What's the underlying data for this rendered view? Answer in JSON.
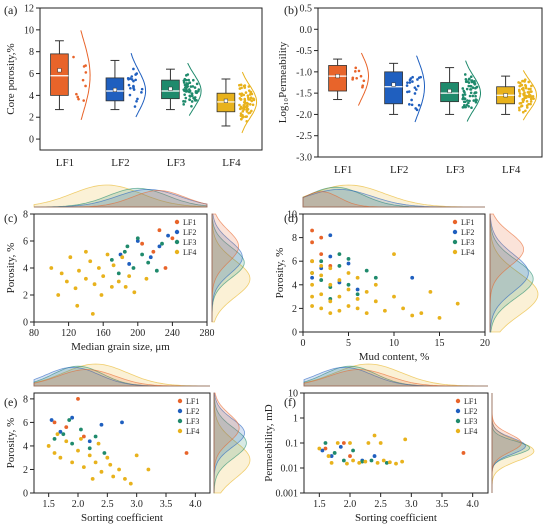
{
  "colors": {
    "LF1": "#e8642a",
    "LF2": "#1f5fbf",
    "LF3": "#1f8a6c",
    "LF4": "#e8b21c",
    "axis": "#222222"
  },
  "legend_labels": [
    "LF1",
    "LF2",
    "LF3",
    "LF4"
  ],
  "chart_data": [
    {
      "type": "box",
      "panel": "(a)",
      "ylabel": "Core porosity,%",
      "ylim": [
        -1,
        12
      ],
      "yticks": [
        "0",
        "2",
        "4",
        "6",
        "8",
        "10",
        "12"
      ],
      "categories": [
        "LF1",
        "LF2",
        "LF3",
        "LF4"
      ],
      "boxes": [
        {
          "name": "LF1",
          "whisker_low": 2.7,
          "q1": 4.0,
          "median": 5.8,
          "mean": 6.3,
          "q3": 7.8,
          "whisker_high": 9.0
        },
        {
          "name": "LF2",
          "whisker_low": 2.7,
          "q1": 3.5,
          "median": 4.4,
          "mean": 4.5,
          "q3": 5.6,
          "whisker_high": 7.2
        },
        {
          "name": "LF3",
          "whisker_low": 2.7,
          "q1": 3.7,
          "median": 4.4,
          "mean": 4.6,
          "q3": 5.4,
          "whisker_high": 6.4
        },
        {
          "name": "LF4",
          "whisker_low": 1.2,
          "q1": 2.5,
          "median": 3.4,
          "mean": 3.5,
          "q3": 4.2,
          "whisker_high": 5.5
        }
      ]
    },
    {
      "type": "box",
      "panel": "(b)",
      "ylabel": "Log₁₀Permeability",
      "ylim": [
        -3.0,
        0.5
      ],
      "yticks": [
        "-3.0",
        "-2.5",
        "-2.0",
        "-1.5",
        "-1.0",
        "-0.5",
        "0.0",
        "0.5"
      ],
      "categories": [
        "LF1",
        "LF2",
        "LF3",
        "LF4"
      ],
      "boxes": [
        {
          "name": "LF1",
          "whisker_low": -1.65,
          "q1": -1.45,
          "median": -1.1,
          "mean": -1.1,
          "q3": -0.85,
          "whisker_high": -0.7
        },
        {
          "name": "LF2",
          "whisker_low": -2.0,
          "q1": -1.75,
          "median": -1.35,
          "mean": -1.3,
          "q3": -1.0,
          "whisker_high": -0.8
        },
        {
          "name": "LF3",
          "whisker_low": -2.0,
          "q1": -1.7,
          "median": -1.5,
          "mean": -1.45,
          "q3": -1.25,
          "whisker_high": -0.9
        },
        {
          "name": "LF4",
          "whisker_low": -2.0,
          "q1": -1.75,
          "median": -1.55,
          "mean": -1.55,
          "q3": -1.35,
          "whisker_high": -1.1
        }
      ]
    },
    {
      "type": "scatter",
      "panel": "(c)",
      "xlabel": "Median grain size, μm",
      "ylabel": "Porosity, %",
      "xlim": [
        80,
        280
      ],
      "ylim": [
        0,
        8
      ],
      "xticks": [
        "80",
        "120",
        "160",
        "200",
        "240",
        "280"
      ],
      "yticks": [
        "0",
        "2",
        "4",
        "6",
        "8"
      ],
      "series": [
        {
          "name": "LF1",
          "points": [
            [
              205,
              5.8
            ],
            [
              225,
              6.8
            ],
            [
              240,
              6.2
            ],
            [
              218,
              5.2
            ],
            [
              232,
              4.0
            ]
          ]
        },
        {
          "name": "LF2",
          "points": [
            [
              180,
              5.0
            ],
            [
              200,
              6.0
            ],
            [
              215,
              4.8
            ],
            [
              225,
              5.6
            ],
            [
              190,
              4.3
            ],
            [
              235,
              6.4
            ]
          ]
        },
        {
          "name": "LF3",
          "points": [
            [
              170,
              4.6
            ],
            [
              185,
              5.2
            ],
            [
              195,
              4.0
            ],
            [
              205,
              5.0
            ],
            [
              212,
              4.4
            ],
            [
              222,
              3.8
            ],
            [
              228,
              5.8
            ],
            [
              200,
              6.2
            ],
            [
              178,
              3.6
            ],
            [
              188,
              5.6
            ]
          ]
        },
        {
          "name": "LF4",
          "points": [
            [
              100,
              4.0
            ],
            [
              108,
              2.0
            ],
            [
              118,
              3.0
            ],
            [
              122,
              4.8
            ],
            [
              128,
              2.5
            ],
            [
              132,
              3.8
            ],
            [
              140,
              3.2
            ],
            [
              145,
              4.5
            ],
            [
              150,
              2.8
            ],
            [
              155,
              4.0
            ],
            [
              160,
              3.4
            ],
            [
              165,
              5.0
            ],
            [
              170,
              2.6
            ],
            [
              172,
              4.2
            ],
            [
              178,
              3.0
            ],
            [
              182,
              4.8
            ],
            [
              190,
              3.4
            ],
            [
              196,
              2.2
            ],
            [
              130,
              1.2
            ],
            [
              140,
              5.2
            ],
            [
              158,
              2.0
            ],
            [
              186,
              2.6
            ],
            [
              210,
              3.2
            ],
            [
              148,
              0.6
            ],
            [
              112,
              3.6
            ]
          ]
        }
      ]
    },
    {
      "type": "scatter",
      "panel": "(d)",
      "xlabel": "Mud content, %",
      "ylabel": "Porosity, %",
      "xlim": [
        0,
        20
      ],
      "ylim": [
        0,
        10
      ],
      "xticks": [
        "0",
        "5",
        "10",
        "15",
        "20"
      ],
      "yticks": [
        "0",
        "2",
        "4",
        "6",
        "8",
        "10"
      ],
      "series": [
        {
          "name": "LF1",
          "points": [
            [
              1,
              8.6
            ],
            [
              1,
              7.6
            ],
            [
              2,
              6.6
            ],
            [
              3,
              5.6
            ],
            [
              2,
              8.0
            ],
            [
              1,
              6.0
            ]
          ]
        },
        {
          "name": "LF2",
          "points": [
            [
              1,
              4.6
            ],
            [
              2,
              5.4
            ],
            [
              3,
              6.4
            ],
            [
              4,
              4.2
            ],
            [
              5,
              5.8
            ],
            [
              6,
              3.6
            ],
            [
              12,
              4.6
            ],
            [
              3,
              8.2
            ]
          ]
        },
        {
          "name": "LF3",
          "points": [
            [
              1,
              5.0
            ],
            [
              2,
              4.4
            ],
            [
              3,
              3.8
            ],
            [
              4,
              5.6
            ],
            [
              5,
              4.0
            ],
            [
              6,
              3.2
            ],
            [
              7,
              5.2
            ],
            [
              8,
              4.6
            ],
            [
              2,
              6.0
            ],
            [
              4,
              6.6
            ],
            [
              3,
              2.8
            ],
            [
              5,
              6.2
            ]
          ]
        },
        {
          "name": "LF4",
          "points": [
            [
              1,
              3.0
            ],
            [
              1,
              4.0
            ],
            [
              1,
              5.0
            ],
            [
              1,
              6.0
            ],
            [
              2,
              2.0
            ],
            [
              2,
              3.2
            ],
            [
              2,
              4.8
            ],
            [
              3,
              1.6
            ],
            [
              3,
              2.6
            ],
            [
              3,
              4.0
            ],
            [
              4,
              1.8
            ],
            [
              4,
              3.0
            ],
            [
              4,
              4.4
            ],
            [
              5,
              2.2
            ],
            [
              5,
              3.6
            ],
            [
              5,
              5.0
            ],
            [
              6,
              2.0
            ],
            [
              6,
              2.8
            ],
            [
              6,
              4.6
            ],
            [
              7,
              1.6
            ],
            [
              7,
              3.4
            ],
            [
              8,
              2.6
            ],
            [
              8,
              4.0
            ],
            [
              9,
              1.8
            ],
            [
              10,
              3.0
            ],
            [
              10,
              6.6
            ],
            [
              11,
              2.0
            ],
            [
              12,
              1.4
            ],
            [
              13,
              1.6
            ],
            [
              14,
              3.4
            ],
            [
              15,
              1.2
            ],
            [
              17,
              2.4
            ],
            [
              1,
              2.2
            ],
            [
              2,
              5.6
            ],
            [
              3,
              5.4
            ]
          ]
        }
      ]
    },
    {
      "type": "scatter",
      "panel": "(e)",
      "xlabel": "Sorting coefficient",
      "ylabel": "Porosity, %",
      "xlim": [
        1.25,
        4.25
      ],
      "ylim": [
        0,
        8.5
      ],
      "xticks": [
        "1.5",
        "2.0",
        "2.5",
        "3.0",
        "3.5",
        "4.0"
      ],
      "yticks": [
        "0",
        "2",
        "4",
        "6",
        "8"
      ],
      "series": [
        {
          "name": "LF1",
          "points": [
            [
              1.6,
              6.0
            ],
            [
              1.8,
              5.6
            ],
            [
              2.0,
              8.0
            ],
            [
              2.1,
              4.8
            ],
            [
              3.85,
              3.4
            ]
          ]
        },
        {
          "name": "LF2",
          "points": [
            [
              1.55,
              6.2
            ],
            [
              1.7,
              5.2
            ],
            [
              1.9,
              6.4
            ],
            [
              2.2,
              4.4
            ],
            [
              2.4,
              5.8
            ],
            [
              2.75,
              6.0
            ]
          ]
        },
        {
          "name": "LF3",
          "points": [
            [
              1.6,
              4.6
            ],
            [
              1.75,
              5.0
            ],
            [
              1.9,
              4.2
            ],
            [
              2.05,
              5.4
            ],
            [
              2.2,
              3.8
            ],
            [
              2.3,
              4.8
            ],
            [
              2.45,
              3.4
            ],
            [
              1.85,
              6.2
            ]
          ]
        },
        {
          "name": "LF4",
          "points": [
            [
              1.5,
              4.0
            ],
            [
              1.6,
              3.4
            ],
            [
              1.7,
              3.0
            ],
            [
              1.8,
              4.4
            ],
            [
              1.9,
              2.6
            ],
            [
              2.0,
              3.6
            ],
            [
              2.1,
              2.2
            ],
            [
              2.2,
              3.2
            ],
            [
              2.3,
              2.6
            ],
            [
              2.35,
              4.2
            ],
            [
              2.4,
              1.8
            ],
            [
              2.5,
              3.0
            ],
            [
              2.55,
              2.4
            ],
            [
              2.6,
              1.4
            ],
            [
              2.7,
              2.0
            ],
            [
              2.8,
              1.2
            ],
            [
              2.9,
              0.8
            ],
            [
              3.0,
              3.2
            ],
            [
              3.2,
              2.0
            ],
            [
              1.65,
              5.0
            ],
            [
              2.05,
              4.6
            ],
            [
              2.25,
              1.2
            ]
          ]
        }
      ]
    },
    {
      "type": "scatter",
      "panel": "(f)",
      "xlabel": "Sorting coefficient",
      "ylabel": "Permeability, mD",
      "xscale": "log-y",
      "xlim": [
        1.25,
        4.25
      ],
      "ylim": [
        0.001,
        10
      ],
      "xticks": [
        "1.5",
        "2.0",
        "2.5",
        "3.0",
        "3.5",
        "4.0"
      ],
      "yticks": [
        "0.001",
        "0.01",
        "0.1",
        "1",
        "10"
      ],
      "series": [
        {
          "name": "LF1",
          "points": [
            [
              1.6,
              0.06
            ],
            [
              1.9,
              0.1
            ],
            [
              2.0,
              0.03
            ],
            [
              3.85,
              0.04
            ]
          ]
        },
        {
          "name": "LF2",
          "points": [
            [
              1.55,
              0.05
            ],
            [
              1.7,
              0.03
            ],
            [
              1.85,
              0.07
            ],
            [
              2.2,
              0.02
            ],
            [
              2.4,
              0.03
            ]
          ]
        },
        {
          "name": "LF3",
          "points": [
            [
              1.6,
              0.1
            ],
            [
              1.75,
              0.04
            ],
            [
              1.9,
              0.02
            ],
            [
              2.05,
              0.05
            ],
            [
              2.2,
              0.018
            ],
            [
              2.35,
              0.02
            ],
            [
              2.6,
              0.016
            ]
          ]
        },
        {
          "name": "LF4",
          "points": [
            [
              1.5,
              0.06
            ],
            [
              1.65,
              0.03
            ],
            [
              1.8,
              0.1
            ],
            [
              1.95,
              0.015
            ],
            [
              2.05,
              0.02
            ],
            [
              2.15,
              0.016
            ],
            [
              2.25,
              0.018
            ],
            [
              2.3,
              0.1
            ],
            [
              2.4,
              0.2
            ],
            [
              2.45,
              0.016
            ],
            [
              2.55,
              0.02
            ],
            [
              2.65,
              0.017
            ],
            [
              2.75,
              0.015
            ],
            [
              2.85,
              0.018
            ],
            [
              2.9,
              0.14
            ],
            [
              2.0,
              0.1
            ],
            [
              2.5,
              0.1
            ],
            [
              1.7,
              0.016
            ]
          ]
        }
      ]
    }
  ]
}
